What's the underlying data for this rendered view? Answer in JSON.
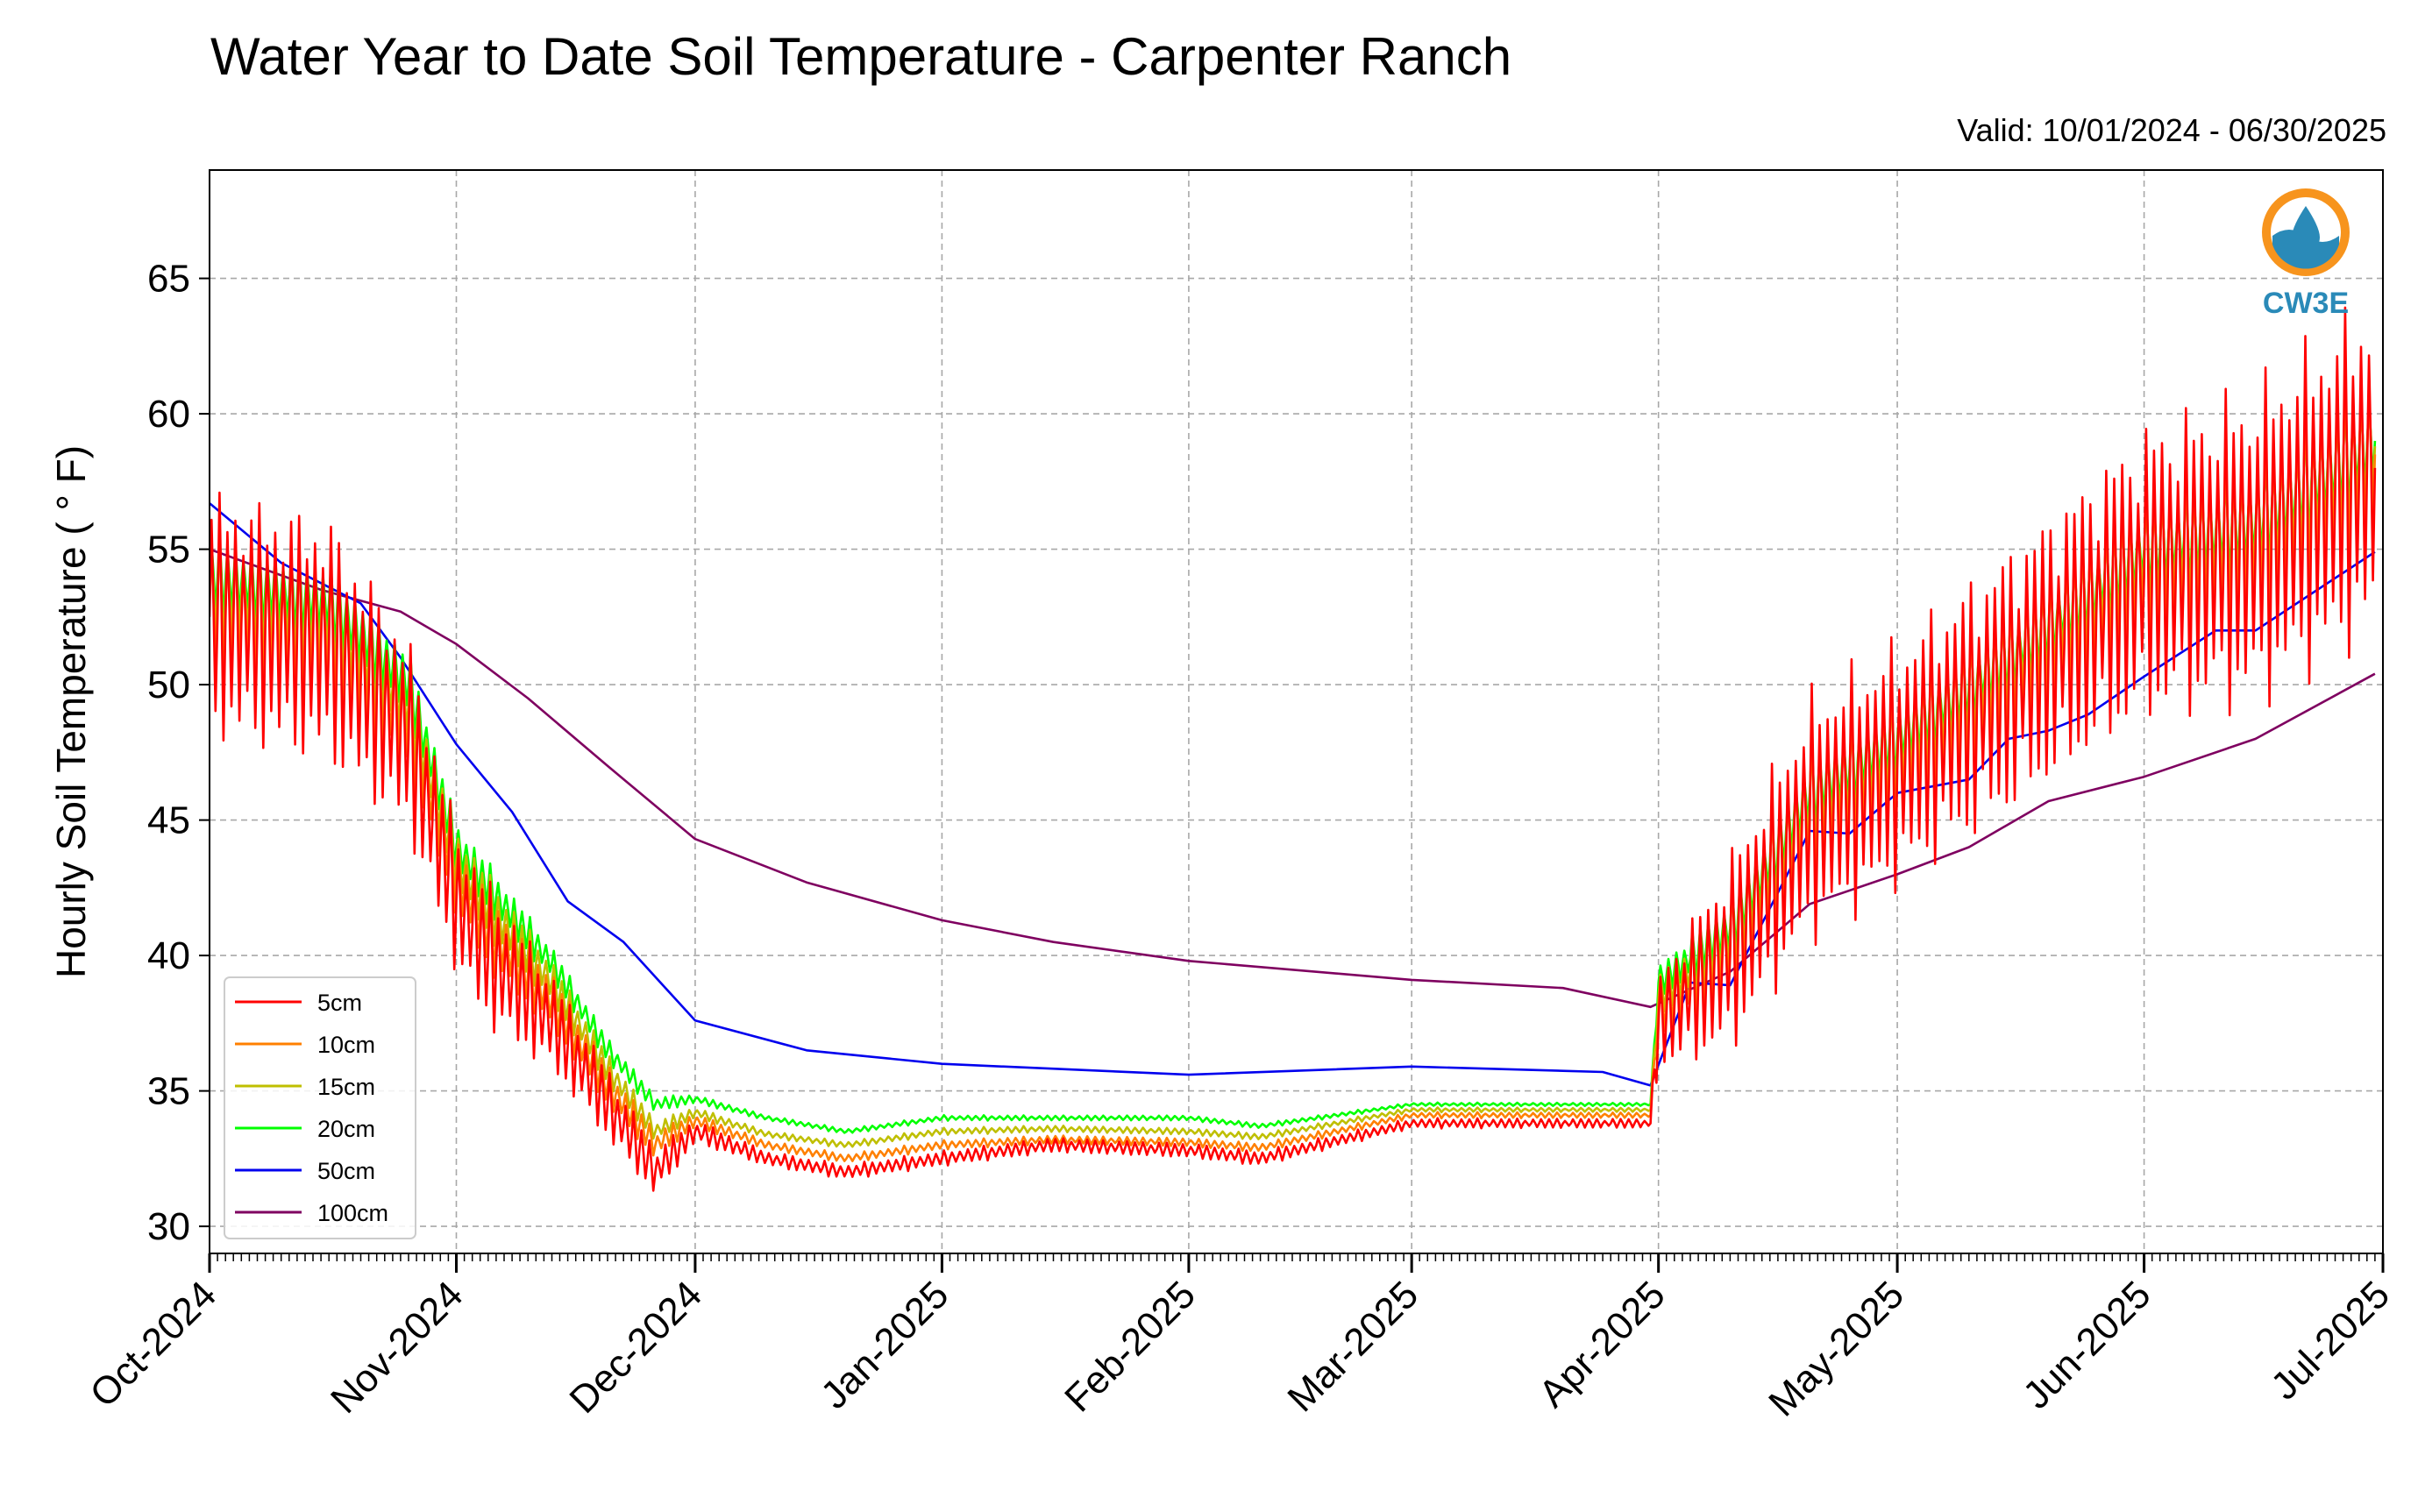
{
  "chart_data": {
    "type": "line",
    "title": "Water Year to Date Soil Temperature - Carpenter Ranch",
    "subtitle": "Valid: 10/01/2024 - 06/30/2025",
    "ylabel": "Hourly Soil Temperature ( ° F)",
    "xlabel": "",
    "ylim": [
      29,
      69
    ],
    "yticks": [
      30,
      35,
      40,
      45,
      50,
      55,
      60,
      65
    ],
    "xlim": [
      "2024-10-01",
      "2025-07-01"
    ],
    "x_tick_labels": [
      "Oct-2024",
      "Nov-2024",
      "Dec-2024",
      "Jan-2025",
      "Feb-2025",
      "Mar-2025",
      "Apr-2025",
      "May-2025",
      "Jun-2025",
      "Jul-2025"
    ],
    "x_tick_dates": [
      "2024-10-01",
      "2024-11-01",
      "2024-12-01",
      "2025-01-01",
      "2025-02-01",
      "2025-03-01",
      "2025-04-01",
      "2025-05-01",
      "2025-06-01",
      "2025-07-01"
    ],
    "grid": true,
    "legend_position": "lower-left",
    "logo_text": "CW3E",
    "series": [
      {
        "name": "5cm",
        "color": "#ff0000",
        "amp_scale": 1.0,
        "x": [
          "2024-10-01",
          "2024-10-16",
          "2024-10-26",
          "2024-11-01",
          "2024-11-05",
          "2024-11-13",
          "2024-11-20",
          "2024-11-26",
          "2024-12-01",
          "2024-12-10",
          "2024-12-20",
          "2025-01-01",
          "2025-01-15",
          "2025-02-01",
          "2025-02-10",
          "2025-03-01",
          "2025-03-31",
          "2025-04-01",
          "2025-04-10",
          "2025-04-20",
          "2025-05-01",
          "2025-05-15",
          "2025-06-01",
          "2025-06-15",
          "2025-06-30"
        ],
        "y": [
          52.5,
          51.5,
          48,
          42,
          40,
          37.5,
          34.5,
          32,
          33.5,
          32.5,
          32,
          32.5,
          33,
          32.8,
          32.5,
          33.8,
          33.8,
          37.5,
          40,
          45,
          47,
          50,
          54,
          55,
          58
        ],
        "amp": [
          5,
          5,
          4,
          3,
          3,
          2,
          1.5,
          1,
          0.5,
          0.3,
          0.3,
          0.3,
          0.3,
          0.3,
          0.3,
          0.2,
          0.2,
          2,
          4,
          5,
          5,
          5.5,
          6,
          6.5,
          7
        ]
      },
      {
        "name": "10cm",
        "color": "#ff8000",
        "amp_scale": 0.6,
        "x": [
          "2024-10-01",
          "2024-10-16",
          "2024-10-26",
          "2024-11-01",
          "2024-11-05",
          "2024-11-13",
          "2024-11-20",
          "2024-11-26",
          "2024-12-01",
          "2024-12-10",
          "2024-12-20",
          "2025-01-01",
          "2025-01-15",
          "2025-02-01",
          "2025-02-10",
          "2025-03-01",
          "2025-03-31",
          "2025-04-01",
          "2025-04-10",
          "2025-04-20",
          "2025-05-01",
          "2025-05-15",
          "2025-06-01",
          "2025-06-15",
          "2025-06-30"
        ],
        "y": [
          53,
          52,
          48.7,
          43,
          41,
          38.3,
          35.2,
          33,
          33.9,
          33,
          32.5,
          33,
          33.2,
          33.1,
          32.9,
          34.1,
          34.1,
          38,
          40.4,
          45.4,
          47.4,
          50.5,
          54.5,
          55.5,
          58.5
        ],
        "amp": [
          5,
          5,
          4,
          3,
          3,
          2,
          1.5,
          1,
          0.5,
          0.3,
          0.3,
          0.3,
          0.3,
          0.3,
          0.3,
          0.2,
          0.2,
          2,
          4,
          5,
          5,
          5.5,
          6,
          6.5,
          7
        ]
      },
      {
        "name": "15cm",
        "color": "#bfbf00",
        "amp_scale": 0.45,
        "x": [
          "2024-10-01",
          "2024-10-16",
          "2024-10-26",
          "2024-11-01",
          "2024-11-05",
          "2024-11-13",
          "2024-11-20",
          "2024-11-26",
          "2024-12-01",
          "2024-12-10",
          "2024-12-20",
          "2025-01-01",
          "2025-01-15",
          "2025-02-01",
          "2025-02-10",
          "2025-03-01",
          "2025-03-31",
          "2025-04-01",
          "2025-04-10",
          "2025-04-20",
          "2025-05-01",
          "2025-05-15",
          "2025-06-01",
          "2025-06-15",
          "2025-06-30"
        ],
        "y": [
          53.5,
          52.5,
          49.3,
          43.5,
          41.8,
          39,
          35.8,
          33.5,
          34.2,
          33.4,
          33,
          33.5,
          33.6,
          33.5,
          33.3,
          34.3,
          34.3,
          38.5,
          40.7,
          45.7,
          47.7,
          50.8,
          54.8,
          55.8,
          58.8
        ],
        "amp": [
          5,
          5,
          4,
          3,
          3,
          2,
          1.5,
          1,
          0.5,
          0.3,
          0.3,
          0.3,
          0.3,
          0.3,
          0.3,
          0.2,
          0.2,
          2,
          4,
          5,
          5,
          5.5,
          6,
          6.5,
          7
        ]
      },
      {
        "name": "20cm",
        "color": "#00ff00",
        "amp_scale": 0.35,
        "x": [
          "2024-10-01",
          "2024-10-16",
          "2024-10-26",
          "2024-11-01",
          "2024-11-05",
          "2024-11-13",
          "2024-11-20",
          "2024-11-26",
          "2024-12-01",
          "2024-12-10",
          "2024-12-20",
          "2025-01-01",
          "2025-01-15",
          "2025-02-01",
          "2025-02-10",
          "2025-03-01",
          "2025-03-31",
          "2025-04-01",
          "2025-04-10",
          "2025-04-20",
          "2025-05-01",
          "2025-05-15",
          "2025-06-01",
          "2025-06-15",
          "2025-06-30"
        ],
        "y": [
          54,
          53,
          50,
          44,
          42.5,
          39.7,
          36.5,
          34.5,
          34.7,
          34,
          33.5,
          34,
          34,
          34,
          33.7,
          34.5,
          34.5,
          39,
          41,
          46,
          48,
          51,
          55,
          56,
          59
        ],
        "amp": [
          5,
          5,
          4,
          3,
          3,
          2,
          1.5,
          1,
          0.5,
          0.3,
          0.3,
          0.3,
          0.3,
          0.3,
          0.3,
          0.2,
          0.2,
          2,
          4,
          5,
          5,
          5.5,
          6,
          6.5,
          7
        ]
      },
      {
        "name": "50cm",
        "color": "#0000ee",
        "x": [
          "2024-10-01",
          "2024-10-10",
          "2024-10-20",
          "2024-10-25",
          "2024-11-01",
          "2024-11-08",
          "2024-11-15",
          "2024-11-22",
          "2024-12-01",
          "2024-12-15",
          "2025-01-01",
          "2025-02-01",
          "2025-03-01",
          "2025-03-25",
          "2025-03-31",
          "2025-04-05",
          "2025-04-10",
          "2025-04-20",
          "2025-04-25",
          "2025-05-01",
          "2025-05-10",
          "2025-05-15",
          "2025-05-20",
          "2025-05-25",
          "2025-06-01",
          "2025-06-10",
          "2025-06-15",
          "2025-06-30"
        ],
        "y": [
          56.7,
          54.5,
          53,
          51,
          47.8,
          45.3,
          42,
          40.5,
          37.6,
          36.5,
          36,
          35.6,
          35.9,
          35.7,
          35.2,
          39,
          38.9,
          44.6,
          44.5,
          46,
          46.5,
          48,
          48.3,
          48.9,
          50.3,
          52,
          52,
          54.9
        ]
      },
      {
        "name": "100cm",
        "color": "#7f0060",
        "x": [
          "2024-10-01",
          "2024-10-15",
          "2024-10-25",
          "2024-11-01",
          "2024-11-10",
          "2024-11-20",
          "2024-12-01",
          "2024-12-15",
          "2025-01-01",
          "2025-01-15",
          "2025-02-01",
          "2025-03-01",
          "2025-03-20",
          "2025-03-31",
          "2025-04-10",
          "2025-04-20",
          "2025-05-01",
          "2025-05-10",
          "2025-05-20",
          "2025-06-01",
          "2025-06-15",
          "2025-06-30"
        ],
        "y": [
          55,
          53.5,
          52.7,
          51.5,
          49.5,
          47,
          44.3,
          42.7,
          41.3,
          40.5,
          39.8,
          39.1,
          38.8,
          38.1,
          39.4,
          41.9,
          43,
          44,
          45.7,
          46.6,
          48,
          50.4
        ]
      }
    ]
  }
}
